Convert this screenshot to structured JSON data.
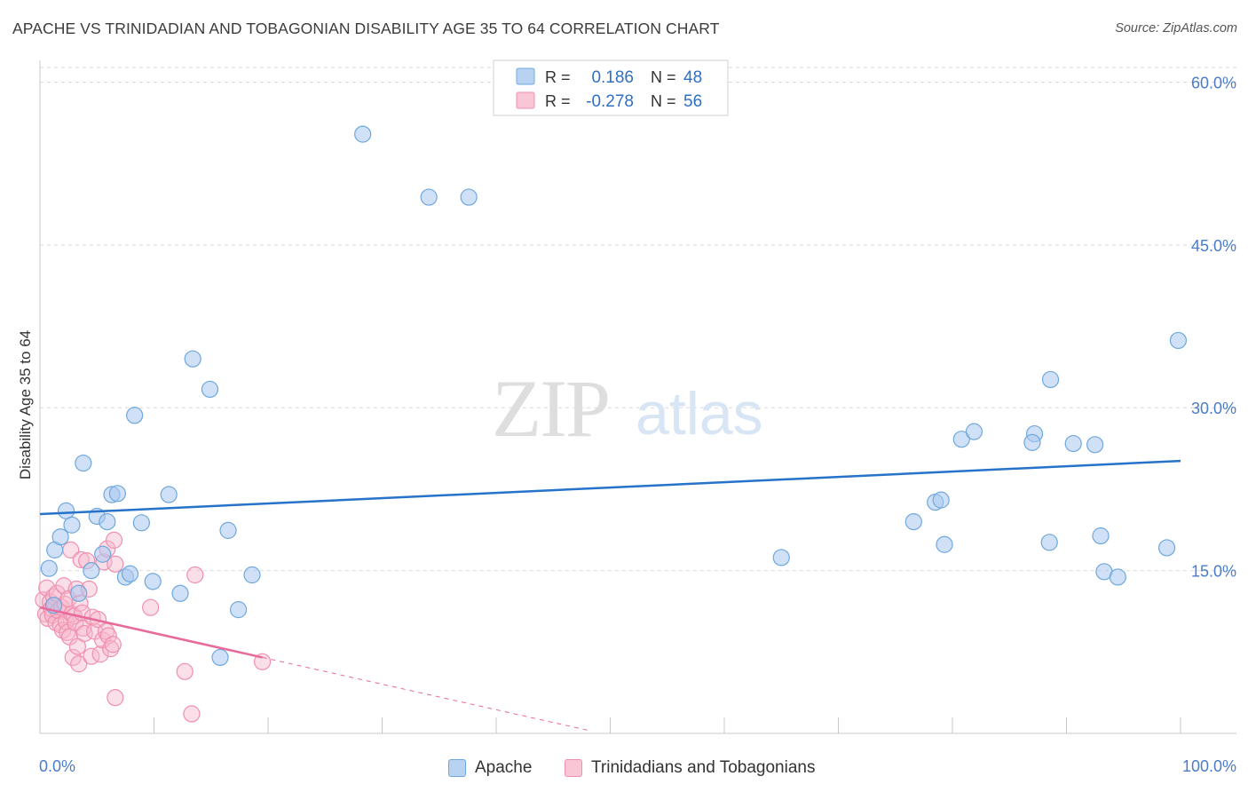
{
  "header": {
    "title": "APACHE VS TRINIDADIAN AND TOBAGONIAN DISABILITY AGE 35 TO 64 CORRELATION CHART",
    "source": "Source: ZipAtlas.com"
  },
  "watermark": {
    "zip": "ZIP",
    "atlas": "atlas"
  },
  "stats_legend": [
    {
      "r_label": "R =",
      "r_value": "0.186",
      "n_label": "N =",
      "n_value": "48",
      "color": "#6fa8dc"
    },
    {
      "r_label": "R =",
      "r_value": "-0.278",
      "n_label": "N =",
      "n_value": "56",
      "color": "#f4a6c0"
    }
  ],
  "colors": {
    "apache_fill": "#a9c9f0",
    "apache_stroke": "#6fa8dc",
    "apache_line": "#2673c9",
    "tt_fill": "#f7b8cb",
    "tt_stroke": "#f08fae",
    "tt_line": "#e8699a",
    "axis_text": "#4a7cc9",
    "grid": "#d9d9d9"
  },
  "chart_data": {
    "type": "scatter",
    "title": "APACHE VS TRINIDADIAN AND TOBAGONIAN DISABILITY AGE 35 TO 64 CORRELATION CHART",
    "xlabel": "",
    "ylabel": "Disability Age 35 to 64",
    "xlim": [
      0,
      100
    ],
    "ylim": [
      0,
      62
    ],
    "x_tick_labels": [
      "0.0%",
      "100.0%"
    ],
    "y_ticks": [
      15,
      30,
      45,
      60
    ],
    "y_tick_labels": [
      "15.0%",
      "30.0%",
      "45.0%",
      "60.0%"
    ],
    "grid": true,
    "legend": "bottom-center",
    "series": [
      {
        "name": "Apache",
        "r": 0.186,
        "n": 48,
        "trend": {
          "x": [
            0,
            100
          ],
          "y": [
            20.2,
            25.1
          ]
        },
        "points": [
          [
            1.2,
            11.8
          ],
          [
            0.8,
            15.2
          ],
          [
            1.3,
            16.9
          ],
          [
            1.8,
            18.1
          ],
          [
            2.3,
            20.5
          ],
          [
            2.8,
            19.2
          ],
          [
            3.4,
            12.9
          ],
          [
            3.8,
            24.9
          ],
          [
            4.5,
            15.0
          ],
          [
            5.0,
            20.0
          ],
          [
            5.5,
            16.5
          ],
          [
            5.9,
            19.5
          ],
          [
            6.3,
            22.0
          ],
          [
            6.8,
            22.1
          ],
          [
            7.5,
            14.4
          ],
          [
            7.9,
            14.7
          ],
          [
            8.3,
            29.3
          ],
          [
            8.9,
            19.4
          ],
          [
            9.9,
            14.0
          ],
          [
            11.3,
            22.0
          ],
          [
            12.3,
            12.9
          ],
          [
            13.4,
            34.5
          ],
          [
            14.9,
            31.7
          ],
          [
            15.8,
            7.0
          ],
          [
            16.5,
            18.7
          ],
          [
            17.4,
            11.4
          ],
          [
            18.6,
            14.6
          ],
          [
            28.3,
            55.2
          ],
          [
            34.1,
            49.4
          ],
          [
            37.6,
            49.4
          ],
          [
            65.0,
            16.2
          ],
          [
            76.6,
            19.5
          ],
          [
            78.5,
            21.3
          ],
          [
            79.0,
            21.5
          ],
          [
            79.3,
            17.4
          ],
          [
            80.8,
            27.1
          ],
          [
            81.9,
            27.8
          ],
          [
            87.2,
            27.6
          ],
          [
            87.0,
            26.8
          ],
          [
            88.5,
            17.6
          ],
          [
            88.6,
            32.6
          ],
          [
            90.6,
            26.7
          ],
          [
            92.5,
            26.6
          ],
          [
            93.0,
            18.2
          ],
          [
            93.3,
            14.9
          ],
          [
            94.5,
            14.4
          ],
          [
            98.8,
            17.1
          ],
          [
            99.8,
            36.2
          ]
        ]
      },
      {
        "name": "Trinidadians and Tobagonians",
        "r": -0.278,
        "n": 56,
        "trend": {
          "x": [
            0,
            19.5
          ],
          "y": [
            11.6,
            7.0
          ]
        },
        "trend_extension": {
          "x": [
            19.5,
            48.0
          ],
          "y": [
            7.0,
            0.3
          ]
        },
        "points": [
          [
            0.3,
            12.3
          ],
          [
            0.5,
            11.0
          ],
          [
            0.6,
            13.4
          ],
          [
            0.7,
            10.6
          ],
          [
            0.9,
            12.1
          ],
          [
            1.0,
            11.5
          ],
          [
            1.1,
            10.9
          ],
          [
            1.2,
            12.6
          ],
          [
            1.3,
            11.8
          ],
          [
            1.4,
            10.2
          ],
          [
            1.5,
            12.9
          ],
          [
            1.6,
            11.3
          ],
          [
            1.8,
            10.0
          ],
          [
            1.9,
            11.6
          ],
          [
            2.0,
            9.5
          ],
          [
            2.1,
            13.6
          ],
          [
            2.2,
            11.9
          ],
          [
            2.3,
            10.3
          ],
          [
            2.4,
            9.3
          ],
          [
            2.5,
            12.4
          ],
          [
            2.6,
            8.9
          ],
          [
            2.7,
            16.9
          ],
          [
            2.8,
            11.0
          ],
          [
            2.9,
            7.0
          ],
          [
            3.0,
            10.8
          ],
          [
            3.1,
            10.2
          ],
          [
            3.2,
            13.3
          ],
          [
            3.3,
            8.0
          ],
          [
            3.4,
            6.4
          ],
          [
            3.5,
            12.0
          ],
          [
            3.6,
            16.0
          ],
          [
            3.7,
            11.1
          ],
          [
            3.8,
            9.7
          ],
          [
            3.9,
            9.2
          ],
          [
            4.1,
            15.9
          ],
          [
            4.3,
            13.3
          ],
          [
            4.5,
            7.1
          ],
          [
            4.6,
            10.7
          ],
          [
            4.8,
            9.4
          ],
          [
            5.1,
            10.5
          ],
          [
            5.3,
            7.3
          ],
          [
            5.5,
            8.6
          ],
          [
            5.6,
            15.8
          ],
          [
            5.8,
            9.4
          ],
          [
            5.9,
            17.0
          ],
          [
            6.0,
            9.0
          ],
          [
            6.2,
            7.8
          ],
          [
            6.4,
            8.2
          ],
          [
            6.6,
            15.6
          ],
          [
            6.5,
            17.8
          ],
          [
            6.6,
            3.3
          ],
          [
            9.7,
            11.6
          ],
          [
            12.7,
            5.7
          ],
          [
            13.3,
            1.8
          ],
          [
            13.6,
            14.6
          ],
          [
            19.5,
            6.6
          ]
        ]
      }
    ]
  }
}
